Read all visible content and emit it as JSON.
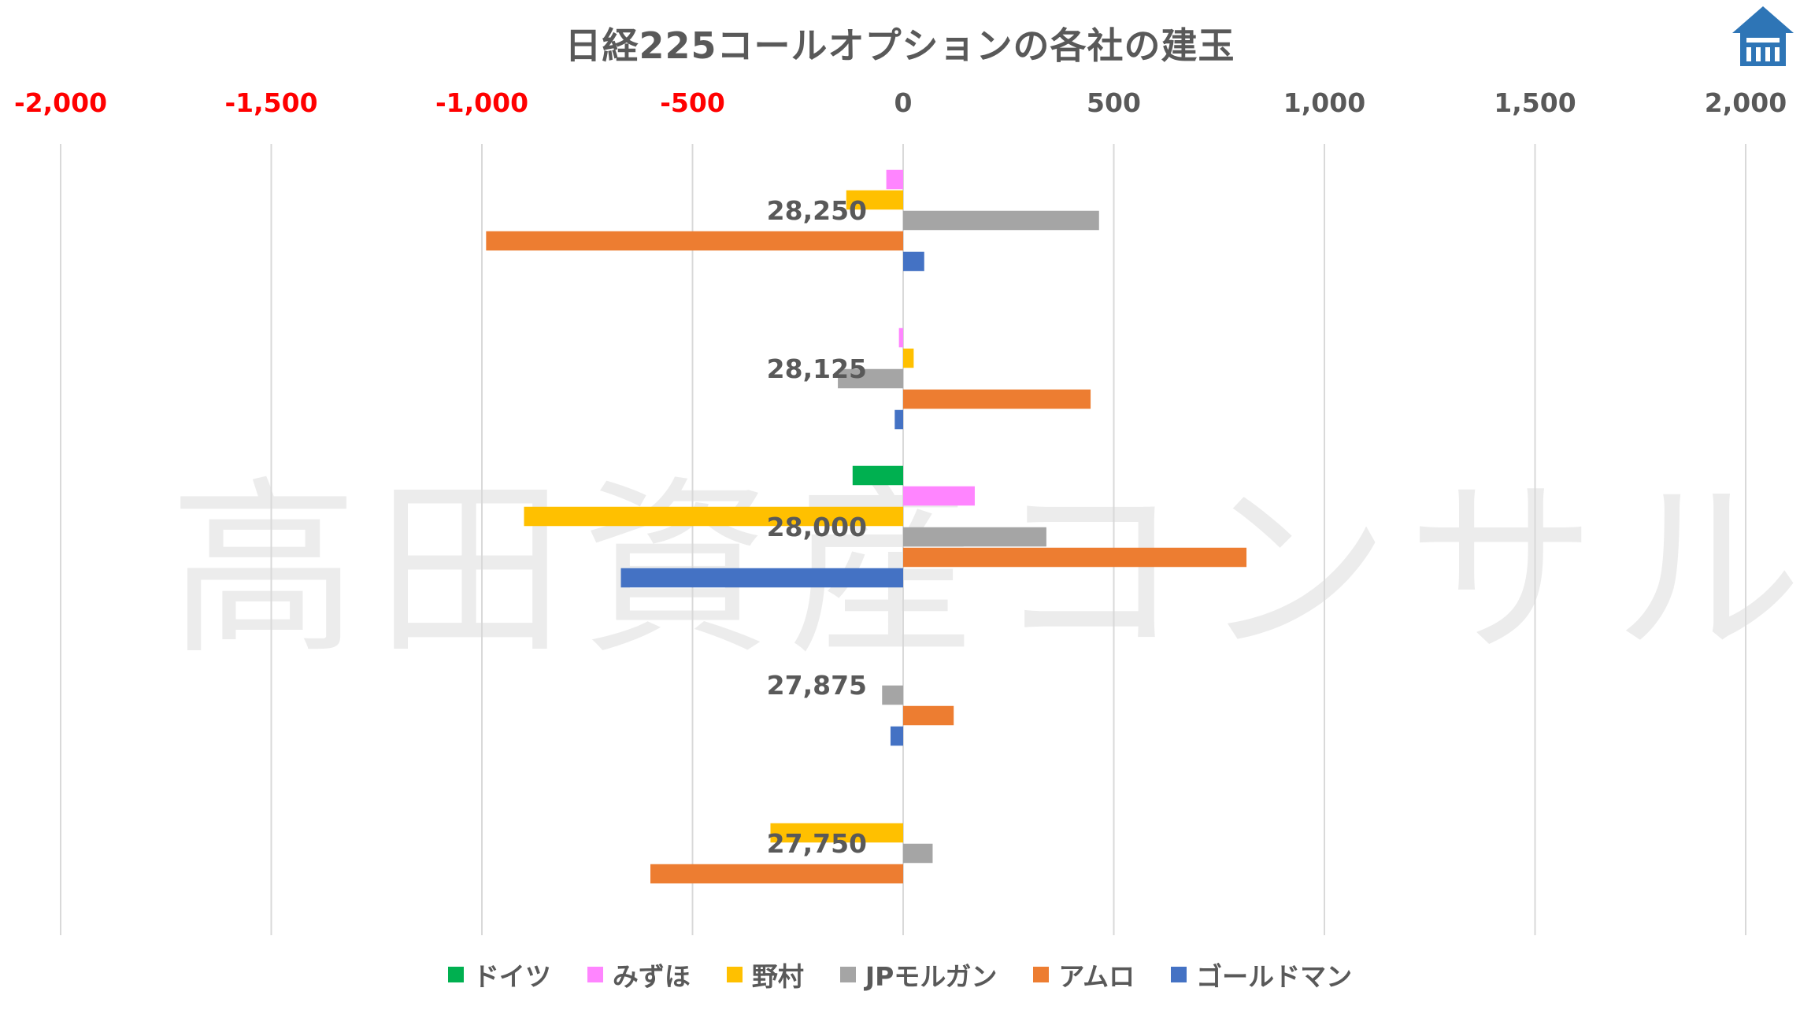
{
  "colors": {
    "negative_tick": "#FF0000",
    "positive_tick": "#595959",
    "gridline": "#D9D9D9",
    "category_label": "#595959",
    "logo": "#2E75B6"
  },
  "watermark": "高田資産コンサル",
  "logo_icon": "house-logo-icon",
  "chart_data": {
    "type": "bar",
    "orientation": "horizontal",
    "title": "日経225コールオプションの各社の建玉",
    "xlabel": "",
    "ylabel": "",
    "xlim": [
      -2000,
      2000
    ],
    "x_ticks": [
      -2000,
      -1500,
      -1000,
      -500,
      0,
      500,
      1000,
      1500,
      2000
    ],
    "x_tick_labels": [
      "-2,000",
      "-1,500",
      "-1,000",
      "-500",
      "0",
      "500",
      "1,000",
      "1,500",
      "2,000"
    ],
    "x_axis_position": "top",
    "grid": true,
    "legend_position": "bottom",
    "categories": [
      "28,250",
      "28,125",
      "28,000",
      "27,875",
      "27,750"
    ],
    "series": [
      {
        "name": "ドイツ",
        "color": "#00B050",
        "values": [
          0,
          0,
          -120,
          0,
          0
        ]
      },
      {
        "name": "みずほ",
        "color": "#FF85FF",
        "values": [
          -40,
          -10,
          170,
          0,
          0
        ]
      },
      {
        "name": "野村",
        "color": "#FFC000",
        "values": [
          -135,
          25,
          -900,
          0,
          -315
        ]
      },
      {
        "name": "JPモルガン",
        "color": "#A5A5A5",
        "values": [
          465,
          -155,
          340,
          -50,
          70
        ]
      },
      {
        "name": "アムロ",
        "color": "#ED7D31",
        "values": [
          -990,
          445,
          815,
          120,
          -600
        ]
      },
      {
        "name": "ゴールドマン",
        "color": "#4472C4",
        "values": [
          50,
          -20,
          -670,
          -30,
          0
        ]
      }
    ]
  }
}
